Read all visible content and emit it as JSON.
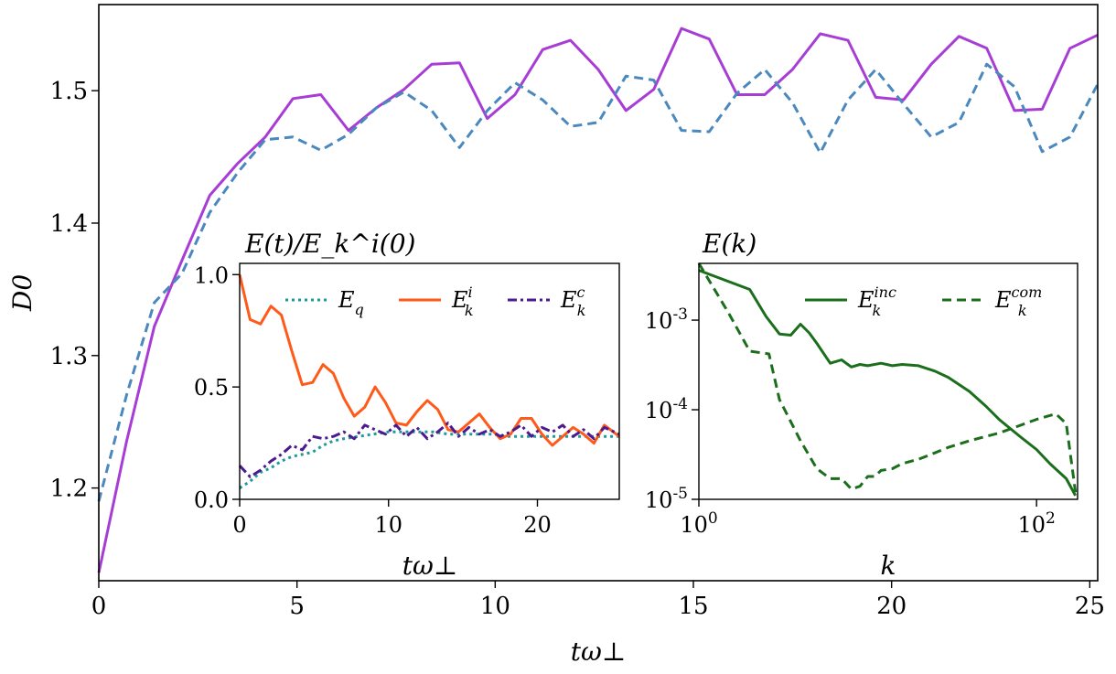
{
  "chart_data": [
    {
      "id": "main",
      "type": "line",
      "title": "",
      "xlabel": "tω⊥",
      "ylabel": "D0",
      "xlim": [
        0,
        25.2
      ],
      "ylim": [
        1.13,
        1.565
      ],
      "xticks": [
        0,
        5,
        10,
        15,
        20,
        25
      ],
      "yticks": [
        1.2,
        1.3,
        1.4,
        1.5
      ],
      "series": [
        {
          "name": "solid",
          "color": "#a83dd6",
          "dash": "",
          "x": [
            0,
            0.7,
            1.4,
            2.1,
            2.8,
            3.5,
            4.2,
            4.9,
            5.6,
            6.3,
            7.0,
            7.7,
            8.4,
            9.1,
            9.8,
            10.5,
            11.2,
            11.9,
            12.6,
            13.3,
            14.0,
            14.7,
            15.4,
            16.1,
            16.8,
            17.5,
            18.2,
            18.9,
            19.6,
            20.3,
            21.0,
            21.7,
            22.4,
            23.1,
            23.8,
            24.5,
            25.2
          ],
          "y": [
            1.136,
            1.235,
            1.322,
            1.372,
            1.421,
            1.445,
            1.465,
            1.494,
            1.497,
            1.47,
            1.487,
            1.501,
            1.52,
            1.521,
            1.479,
            1.497,
            1.531,
            1.538,
            1.516,
            1.485,
            1.501,
            1.547,
            1.539,
            1.497,
            1.497,
            1.516,
            1.543,
            1.538,
            1.495,
            1.493,
            1.52,
            1.541,
            1.532,
            1.485,
            1.486,
            1.532,
            1.542
          ]
        },
        {
          "name": "dashed",
          "color": "#4a88bd",
          "dash": "10,6",
          "x": [
            0,
            0.7,
            1.4,
            2.1,
            2.8,
            3.5,
            4.2,
            4.9,
            5.6,
            6.3,
            7.0,
            7.7,
            8.4,
            9.1,
            9.8,
            10.5,
            11.2,
            11.9,
            12.6,
            13.3,
            14.0,
            14.7,
            15.4,
            16.1,
            16.8,
            17.5,
            18.2,
            18.9,
            19.6,
            20.3,
            21.0,
            21.7,
            22.4,
            23.1,
            23.8,
            24.5,
            25.2
          ],
          "y": [
            1.19,
            1.27,
            1.34,
            1.362,
            1.408,
            1.438,
            1.463,
            1.465,
            1.455,
            1.467,
            1.487,
            1.499,
            1.485,
            1.457,
            1.485,
            1.506,
            1.493,
            1.473,
            1.476,
            1.511,
            1.508,
            1.47,
            1.469,
            1.498,
            1.516,
            1.491,
            1.453,
            1.493,
            1.516,
            1.49,
            1.465,
            1.476,
            1.52,
            1.503,
            1.454,
            1.465,
            1.505
          ]
        }
      ]
    },
    {
      "id": "inset_left",
      "type": "line",
      "title": "E(t)/E_k^i(0)",
      "xlabel": "tω⊥",
      "ylabel": "",
      "xlim": [
        0,
        25.5
      ],
      "ylim": [
        0,
        1.05
      ],
      "xticks": [
        0,
        10,
        20
      ],
      "yticks": [
        0.0,
        0.5,
        1.0
      ],
      "legend": [
        "E_q",
        "E_k^i",
        "E_k^c"
      ],
      "series": [
        {
          "name": "E_q",
          "color": "#1f9a9a",
          "dash": "3,4",
          "x": [
            0,
            0.7,
            1.4,
            2.1,
            2.8,
            3.5,
            4.2,
            4.9,
            5.6,
            6.3,
            7,
            8,
            9,
            10,
            11,
            12,
            13,
            14,
            15,
            16,
            17,
            18,
            19,
            20,
            21,
            22,
            23,
            24,
            25.5
          ],
          "y": [
            0.05,
            0.08,
            0.12,
            0.14,
            0.17,
            0.19,
            0.2,
            0.21,
            0.24,
            0.26,
            0.27,
            0.28,
            0.29,
            0.3,
            0.3,
            0.3,
            0.3,
            0.29,
            0.29,
            0.29,
            0.29,
            0.28,
            0.28,
            0.28,
            0.28,
            0.28,
            0.28,
            0.28,
            0.28
          ]
        },
        {
          "name": "E_k^i",
          "color": "#ff5a1a",
          "dash": "",
          "x": [
            0,
            0.7,
            1.4,
            2.1,
            2.8,
            3.5,
            4.2,
            4.9,
            5.6,
            6.3,
            7,
            7.7,
            8.4,
            9.1,
            9.8,
            10.5,
            11.2,
            11.9,
            12.6,
            13.3,
            14,
            14.7,
            15.4,
            16.1,
            16.8,
            17.5,
            18.2,
            18.9,
            19.6,
            20.3,
            21,
            21.7,
            22.4,
            23.1,
            23.8,
            24.5,
            25.5
          ],
          "y": [
            1.0,
            0.8,
            0.78,
            0.86,
            0.82,
            0.66,
            0.51,
            0.52,
            0.6,
            0.56,
            0.45,
            0.37,
            0.41,
            0.5,
            0.43,
            0.34,
            0.33,
            0.39,
            0.44,
            0.4,
            0.31,
            0.3,
            0.34,
            0.38,
            0.32,
            0.27,
            0.29,
            0.36,
            0.36,
            0.29,
            0.24,
            0.28,
            0.32,
            0.29,
            0.25,
            0.33,
            0.28
          ]
        },
        {
          "name": "E_k^c",
          "color": "#4b1b8f",
          "dash": "10,4,3,4",
          "x": [
            0,
            0.7,
            1.4,
            2.1,
            2.8,
            3.5,
            4.2,
            4.9,
            5.6,
            6.3,
            7,
            7.7,
            8.4,
            9.1,
            9.8,
            10.5,
            11.2,
            11.9,
            12.6,
            13.3,
            14,
            14.7,
            15.4,
            16.1,
            16.8,
            17.5,
            18.2,
            18.9,
            19.6,
            20.3,
            21,
            21.7,
            22.4,
            23.1,
            23.8,
            24.5,
            25.5
          ],
          "y": [
            0.15,
            0.1,
            0.13,
            0.17,
            0.2,
            0.24,
            0.22,
            0.28,
            0.27,
            0.28,
            0.3,
            0.27,
            0.33,
            0.31,
            0.29,
            0.33,
            0.28,
            0.32,
            0.27,
            0.3,
            0.34,
            0.28,
            0.32,
            0.29,
            0.31,
            0.28,
            0.3,
            0.33,
            0.28,
            0.32,
            0.3,
            0.33,
            0.28,
            0.31,
            0.27,
            0.32,
            0.29
          ]
        }
      ]
    },
    {
      "id": "inset_right",
      "type": "line",
      "title": "E(k)",
      "xlabel": "k",
      "ylabel": "",
      "xscale": "log",
      "yscale": "log",
      "xlim": [
        1,
        175
      ],
      "ylim": [
        1e-05,
        0.0043
      ],
      "xticks": [
        {
          "value": 1,
          "label": "10^0"
        },
        {
          "value": 100,
          "label": "10^2"
        }
      ],
      "yticks": [
        {
          "value": 1e-05,
          "label": "10^-5"
        },
        {
          "value": 0.0001,
          "label": "10^-4"
        },
        {
          "value": 0.001,
          "label": "10^-3"
        }
      ],
      "legend": [
        "E_k^inc",
        "E_k^com"
      ],
      "series": [
        {
          "name": "E_k^inc",
          "color": "#1b6e1b",
          "dash": "",
          "x": [
            1,
            2,
            2.5,
            3,
            3.5,
            4,
            4.5,
            5,
            6,
            7,
            8,
            9,
            10,
            12,
            14,
            16,
            20,
            25,
            30,
            40,
            50,
            60,
            80,
            100,
            120,
            150,
            170
          ],
          "y": [
            0.0036,
            0.0022,
            0.0011,
            0.0007,
            0.00068,
            0.0009,
            0.00072,
            0.00055,
            0.00033,
            0.00036,
            0.0003,
            0.00032,
            0.00031,
            0.00033,
            0.00031,
            0.00032,
            0.00031,
            0.00027,
            0.00023,
            0.00016,
            0.00011,
            7.8e-05,
            5e-05,
            3.6e-05,
            2.5e-05,
            1.7e-05,
            1.1e-05
          ]
        },
        {
          "name": "E_k^com",
          "color": "#1b6e1b",
          "dash": "10,6",
          "x": [
            1,
            1.5,
            2,
            2.6,
            3,
            4,
            5,
            6,
            7,
            8,
            9,
            10,
            11,
            12,
            14,
            16,
            20,
            25,
            30,
            40,
            60,
            80,
            100,
            130,
            150,
            170
          ],
          "y": [
            0.0045,
            0.0012,
            0.00045,
            0.00042,
            0.00013,
            4.5e-05,
            2.2e-05,
            1.7e-05,
            1.7e-05,
            1.3e-05,
            1.4e-05,
            1.8e-05,
            1.8e-05,
            2.1e-05,
            2.2e-05,
            2.5e-05,
            2.8e-05,
            3.3e-05,
            3.8e-05,
            4.5e-05,
            5.5e-05,
            6.7e-05,
            7.8e-05,
            9e-05,
            7e-05,
            1.2e-05
          ]
        }
      ]
    }
  ]
}
